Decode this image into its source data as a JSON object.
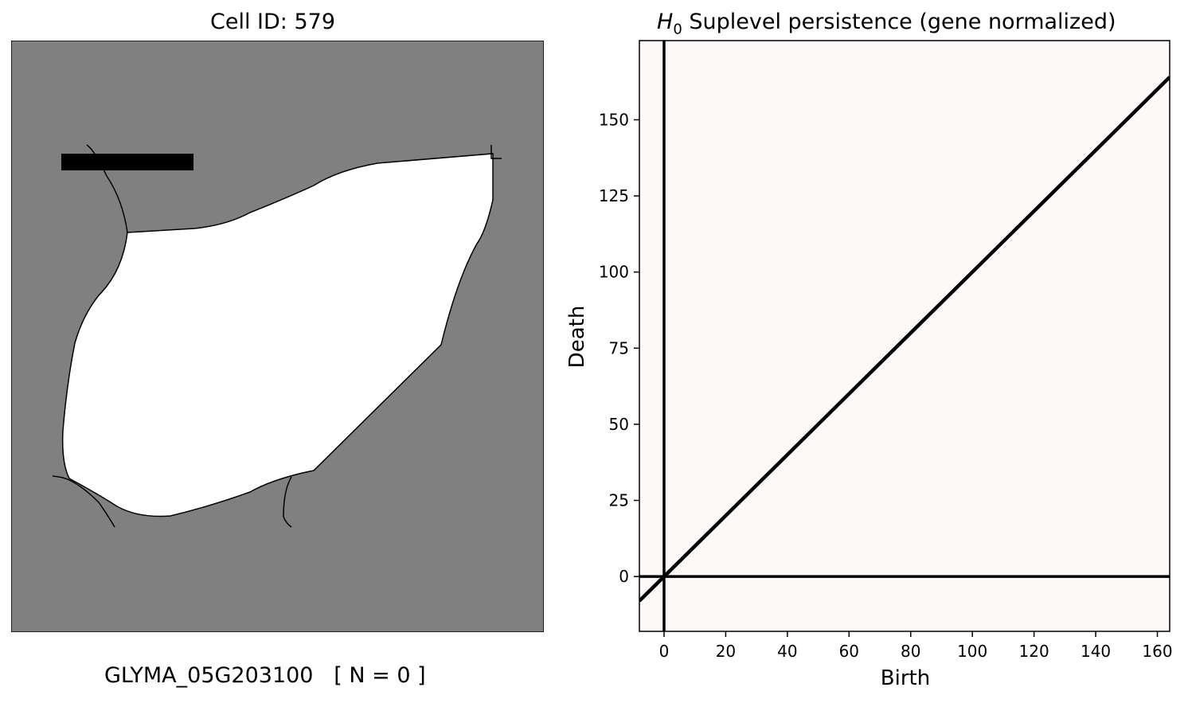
{
  "left_panel": {
    "title": "Cell ID: 579",
    "gene_label": "GLYMA_05G203100   [ N = 0 ]",
    "colors": {
      "background": "#808080",
      "cell": "#ffffff",
      "outline": "#000000"
    }
  },
  "chart_data": {
    "type": "scatter",
    "title_prefix": "H",
    "title_subscript": "0",
    "title_rest": " Suplevel persistence (gene normalized)",
    "xlabel": "Birth",
    "ylabel": "Death",
    "xlim": [
      -8,
      164
    ],
    "ylim": [
      -18,
      176
    ],
    "xticks": [
      0,
      20,
      40,
      60,
      80,
      100,
      120,
      140,
      160
    ],
    "yticks": [
      0,
      25,
      50,
      75,
      100,
      125,
      150
    ],
    "points": [],
    "diagonal": true,
    "reference_lines": {
      "x": 0,
      "y": 0
    },
    "grid": false,
    "background_color": "#fdf9f8"
  }
}
